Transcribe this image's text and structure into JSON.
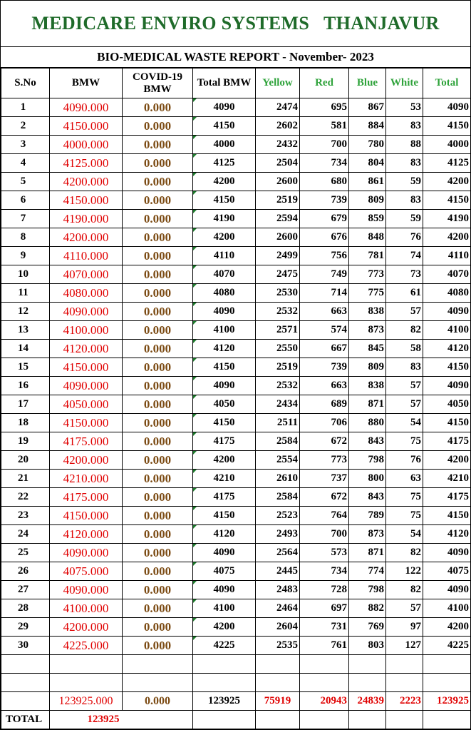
{
  "header": {
    "title": "MEDICARE ENVIRO SYSTEMS   THANJAVUR",
    "subtitle": "BIO-MEDICAL WASTE REPORT - November- 2023"
  },
  "columns": {
    "sno": "S.No",
    "bmw": "BMW",
    "covid": "COVID-19 BMW",
    "total_bmw": "Total BMW",
    "yellow": "Yellow",
    "red": "Red",
    "blue": "Blue",
    "white": "White",
    "total": "Total"
  },
  "rows": [
    {
      "sno": "1",
      "bmw": "4090.000",
      "covid": "0.000",
      "total_bmw": "4090",
      "yellow": "2474",
      "red": "695",
      "blue": "867",
      "white": "53",
      "total": "4090"
    },
    {
      "sno": "2",
      "bmw": "4150.000",
      "covid": "0.000",
      "total_bmw": "4150",
      "yellow": "2602",
      "red": "581",
      "blue": "884",
      "white": "83",
      "total": "4150"
    },
    {
      "sno": "3",
      "bmw": "4000.000",
      "covid": "0.000",
      "total_bmw": "4000",
      "yellow": "2432",
      "red": "700",
      "blue": "780",
      "white": "88",
      "total": "4000"
    },
    {
      "sno": "4",
      "bmw": "4125.000",
      "covid": "0.000",
      "total_bmw": "4125",
      "yellow": "2504",
      "red": "734",
      "blue": "804",
      "white": "83",
      "total": "4125"
    },
    {
      "sno": "5",
      "bmw": "4200.000",
      "covid": "0.000",
      "total_bmw": "4200",
      "yellow": "2600",
      "red": "680",
      "blue": "861",
      "white": "59",
      "total": "4200"
    },
    {
      "sno": "6",
      "bmw": "4150.000",
      "covid": "0.000",
      "total_bmw": "4150",
      "yellow": "2519",
      "red": "739",
      "blue": "809",
      "white": "83",
      "total": "4150"
    },
    {
      "sno": "7",
      "bmw": "4190.000",
      "covid": "0.000",
      "total_bmw": "4190",
      "yellow": "2594",
      "red": "679",
      "blue": "859",
      "white": "59",
      "total": "4190"
    },
    {
      "sno": "8",
      "bmw": "4200.000",
      "covid": "0.000",
      "total_bmw": "4200",
      "yellow": "2600",
      "red": "676",
      "blue": "848",
      "white": "76",
      "total": "4200"
    },
    {
      "sno": "9",
      "bmw": "4110.000",
      "covid": "0.000",
      "total_bmw": "4110",
      "yellow": "2499",
      "red": "756",
      "blue": "781",
      "white": "74",
      "total": "4110"
    },
    {
      "sno": "10",
      "bmw": "4070.000",
      "covid": "0.000",
      "total_bmw": "4070",
      "yellow": "2475",
      "red": "749",
      "blue": "773",
      "white": "73",
      "total": "4070"
    },
    {
      "sno": "11",
      "bmw": "4080.000",
      "covid": "0.000",
      "total_bmw": "4080",
      "yellow": "2530",
      "red": "714",
      "blue": "775",
      "white": "61",
      "total": "4080"
    },
    {
      "sno": "12",
      "bmw": "4090.000",
      "covid": "0.000",
      "total_bmw": "4090",
      "yellow": "2532",
      "red": "663",
      "blue": "838",
      "white": "57",
      "total": "4090"
    },
    {
      "sno": "13",
      "bmw": "4100.000",
      "covid": "0.000",
      "total_bmw": "4100",
      "yellow": "2571",
      "red": "574",
      "blue": "873",
      "white": "82",
      "total": "4100"
    },
    {
      "sno": "14",
      "bmw": "4120.000",
      "covid": "0.000",
      "total_bmw": "4120",
      "yellow": "2550",
      "red": "667",
      "blue": "845",
      "white": "58",
      "total": "4120"
    },
    {
      "sno": "15",
      "bmw": "4150.000",
      "covid": "0.000",
      "total_bmw": "4150",
      "yellow": "2519",
      "red": "739",
      "blue": "809",
      "white": "83",
      "total": "4150"
    },
    {
      "sno": "16",
      "bmw": "4090.000",
      "covid": "0.000",
      "total_bmw": "4090",
      "yellow": "2532",
      "red": "663",
      "blue": "838",
      "white": "57",
      "total": "4090"
    },
    {
      "sno": "17",
      "bmw": "4050.000",
      "covid": "0.000",
      "total_bmw": "4050",
      "yellow": "2434",
      "red": "689",
      "blue": "871",
      "white": "57",
      "total": "4050"
    },
    {
      "sno": "18",
      "bmw": "4150.000",
      "covid": "0.000",
      "total_bmw": "4150",
      "yellow": "2511",
      "red": "706",
      "blue": "880",
      "white": "54",
      "total": "4150"
    },
    {
      "sno": "19",
      "bmw": "4175.000",
      "covid": "0.000",
      "total_bmw": "4175",
      "yellow": "2584",
      "red": "672",
      "blue": "843",
      "white": "75",
      "total": "4175"
    },
    {
      "sno": "20",
      "bmw": "4200.000",
      "covid": "0.000",
      "total_bmw": "4200",
      "yellow": "2554",
      "red": "773",
      "blue": "798",
      "white": "76",
      "total": "4200"
    },
    {
      "sno": "21",
      "bmw": "4210.000",
      "covid": "0.000",
      "total_bmw": "4210",
      "yellow": "2610",
      "red": "737",
      "blue": "800",
      "white": "63",
      "total": "4210"
    },
    {
      "sno": "22",
      "bmw": "4175.000",
      "covid": "0.000",
      "total_bmw": "4175",
      "yellow": "2584",
      "red": "672",
      "blue": "843",
      "white": "75",
      "total": "4175"
    },
    {
      "sno": "23",
      "bmw": "4150.000",
      "covid": "0.000",
      "total_bmw": "4150",
      "yellow": "2523",
      "red": "764",
      "blue": "789",
      "white": "75",
      "total": "4150"
    },
    {
      "sno": "24",
      "bmw": "4120.000",
      "covid": "0.000",
      "total_bmw": "4120",
      "yellow": "2493",
      "red": "700",
      "blue": "873",
      "white": "54",
      "total": "4120"
    },
    {
      "sno": "25",
      "bmw": "4090.000",
      "covid": "0.000",
      "total_bmw": "4090",
      "yellow": "2564",
      "red": "573",
      "blue": "871",
      "white": "82",
      "total": "4090"
    },
    {
      "sno": "26",
      "bmw": "4075.000",
      "covid": "0.000",
      "total_bmw": "4075",
      "yellow": "2445",
      "red": "734",
      "blue": "774",
      "white": "122",
      "total": "4075"
    },
    {
      "sno": "27",
      "bmw": "4090.000",
      "covid": "0.000",
      "total_bmw": "4090",
      "yellow": "2483",
      "red": "728",
      "blue": "798",
      "white": "82",
      "total": "4090"
    },
    {
      "sno": "28",
      "bmw": "4100.000",
      "covid": "0.000",
      "total_bmw": "4100",
      "yellow": "2464",
      "red": "697",
      "blue": "882",
      "white": "57",
      "total": "4100"
    },
    {
      "sno": "29",
      "bmw": "4200.000",
      "covid": "0.000",
      "total_bmw": "4200",
      "yellow": "2604",
      "red": "731",
      "blue": "769",
      "white": "97",
      "total": "4200"
    },
    {
      "sno": "30",
      "bmw": "4225.000",
      "covid": "0.000",
      "total_bmw": "4225",
      "yellow": "2535",
      "red": "761",
      "blue": "803",
      "white": "127",
      "total": "4225"
    }
  ],
  "sums": {
    "bmw": "123925.000",
    "covid": "0.000",
    "total_bmw": "123925",
    "yellow": "75919",
    "red": "20943",
    "blue": "24839",
    "white": "2223",
    "total": "123925"
  },
  "footer": {
    "label": "TOTAL",
    "value": "123925"
  },
  "colors": {
    "title_green": "#1f6b2a",
    "header_green": "#2fa33b",
    "value_red": "#e00000",
    "covid_brown": "#7b4a12"
  }
}
